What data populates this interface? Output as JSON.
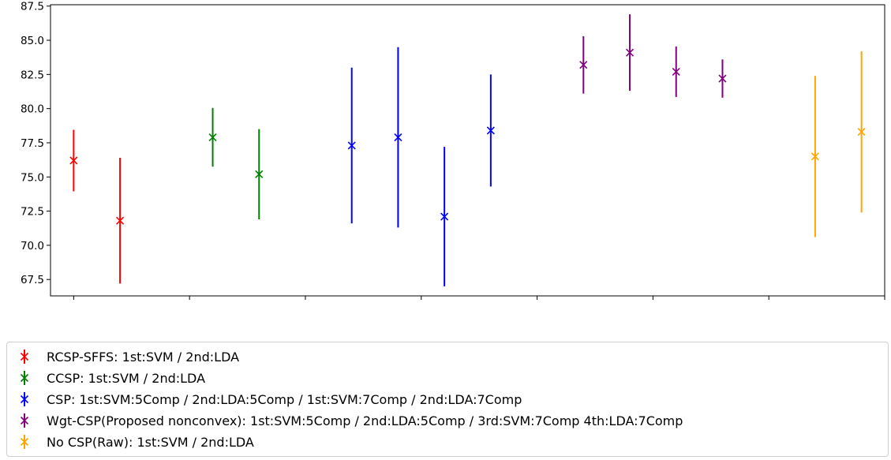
{
  "chart_data": {
    "type": "errorbar",
    "title": "",
    "xlabel": "",
    "ylabel": "",
    "ylim": [
      66.3,
      87.6
    ],
    "yticks": [
      67.5,
      70.0,
      72.5,
      75.0,
      77.5,
      80.0,
      82.5,
      85.0,
      87.5
    ],
    "ytick_labels": [
      "67.5",
      "70.0",
      "72.5",
      "75.0",
      "77.5",
      "80.0",
      "82.5",
      "85.0",
      "87.5"
    ],
    "xlim": [
      0.5,
      18.5
    ],
    "xticks": [
      1,
      3.5,
      6,
      8.5,
      11,
      13.5,
      16,
      18.5
    ],
    "grid": false,
    "legend_position": "below",
    "series": [
      {
        "name": "RCSP-SFFS: 1st:SVM / 2nd:LDA",
        "color": "#ff0000",
        "x": [
          1,
          2
        ],
        "y": [
          76.2,
          71.8
        ],
        "err": [
          2.25,
          4.6
        ]
      },
      {
        "name": "CCSP: 1st:SVM / 2nd:LDA",
        "color": "#008000",
        "x": [
          4,
          5
        ],
        "y": [
          77.9,
          75.2
        ],
        "err": [
          2.15,
          3.3
        ]
      },
      {
        "name": "CSP: 1st:SVM:5Comp / 2nd:LDA:5Comp / 1st:SVM:7Comp / 2nd:LDA:7Comp",
        "color": "#0000ff",
        "x": [
          7,
          8,
          9,
          10
        ],
        "y": [
          77.3,
          77.9,
          72.1,
          78.4
        ],
        "err": [
          5.7,
          6.6,
          5.1,
          4.1
        ]
      },
      {
        "name": "Wgt-CSP(Proposed nonconvex): 1st:SVM:5Comp / 2nd:LDA:5Comp / 3rd:SVM:7Comp  4th:LDA:7Comp",
        "color": "#800080",
        "x": [
          12,
          13,
          14,
          15
        ],
        "y": [
          83.2,
          84.1,
          82.7,
          82.2
        ],
        "err": [
          2.1,
          2.8,
          1.85,
          1.4
        ]
      },
      {
        "name": "No CSP(Raw): 1st:SVM / 2nd:LDA",
        "color": "#ffa500",
        "x": [
          17,
          18
        ],
        "y": [
          76.5,
          78.3
        ],
        "err": [
          5.9,
          5.9
        ]
      }
    ]
  }
}
